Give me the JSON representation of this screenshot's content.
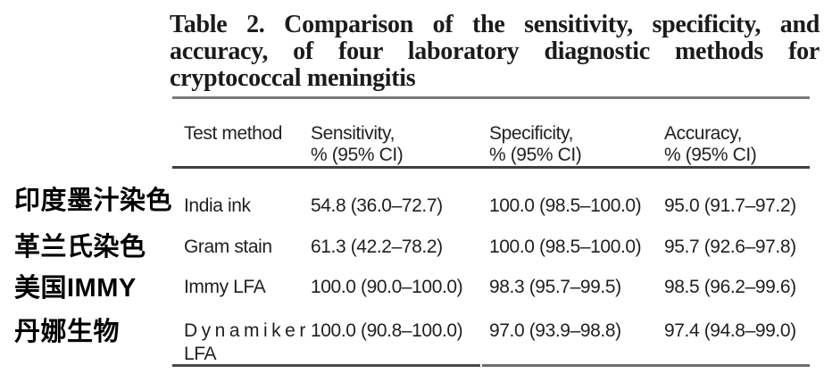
{
  "annotations": {
    "labels": [
      {
        "text": "印度墨汁染色"
      },
      {
        "text": "革兰氏染色"
      },
      {
        "text": "美国IMMY"
      },
      {
        "text": "丹娜生物"
      }
    ]
  },
  "table": {
    "title_lines": [
      "Table 2. Comparison of the sensitivity, specificity, and",
      "accuracy, of four laboratory diagnostic methods for",
      "cryptococcal meningitis"
    ],
    "header": {
      "test_method": "Test method",
      "sensitivity_line1": "Sensitivity,",
      "sensitivity_line2": "% (95% CI)",
      "specificity_line1": "Specificity,",
      "specificity_line2": "% (95% CI)",
      "accuracy_line1": "Accuracy,",
      "accuracy_line2": "% (95% CI)"
    },
    "rows": [
      {
        "method_line1": "India ink",
        "method_line2": "",
        "sensitivity": "54.8 (36.0–72.7)",
        "specificity": "100.0 (98.5–100.0)",
        "accuracy": "95.0 (91.7–97.2)"
      },
      {
        "method_line1": "Gram stain",
        "method_line2": "",
        "sensitivity": "61.3 (42.2–78.2)",
        "specificity": "100.0 (98.5–100.0)",
        "accuracy": "95.7 (92.6–97.8)"
      },
      {
        "method_line1": "Immy LFA",
        "method_line2": "",
        "sensitivity": "100.0 (90.0–100.0)",
        "specificity": "98.3 (95.7–99.5)",
        "accuracy": "98.5 (96.2–99.6)"
      },
      {
        "method_line1": "Dynamiker",
        "method_line2": "LFA",
        "sensitivity": "100.0 (90.8–100.0)",
        "specificity": "97.0 (93.9–98.8)",
        "accuracy": "97.4 (94.8–99.0)"
      }
    ]
  }
}
